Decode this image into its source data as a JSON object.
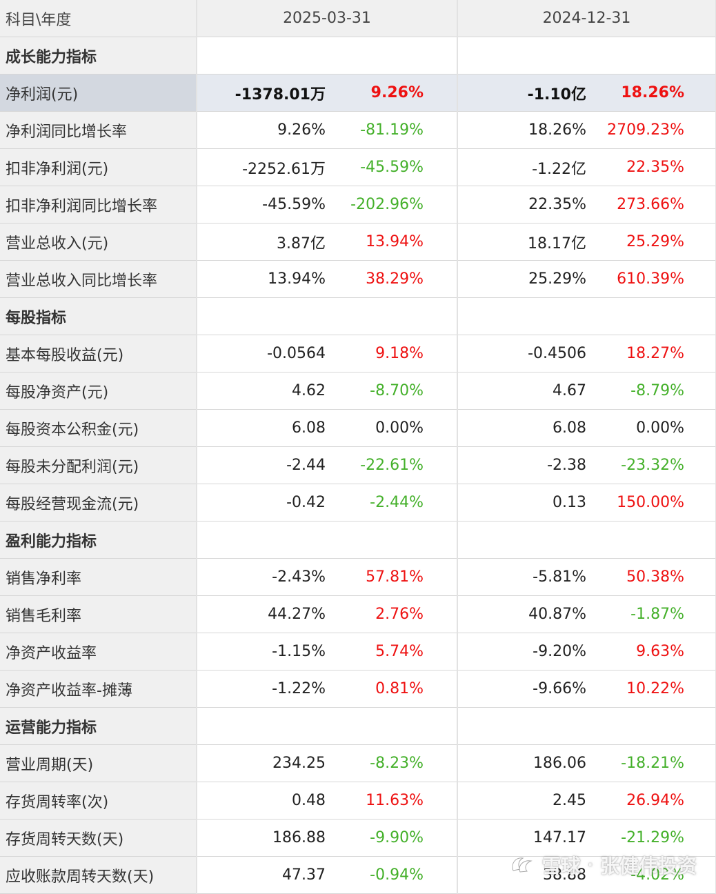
{
  "header": {
    "label": "科目\\年度",
    "periods": [
      "2025-03-31",
      "2024-12-31"
    ]
  },
  "colors": {
    "up": "#ee1111",
    "down": "#44b02a",
    "highlight_row": "#e5e9f0"
  },
  "rows": [
    {
      "type": "section",
      "label": "成长能力指标"
    },
    {
      "type": "data",
      "label": "净利润(元)",
      "highlight": true,
      "cells": [
        {
          "value": "-1378.01万",
          "change": "9.26%",
          "dir": "up"
        },
        {
          "value": "-1.10亿",
          "change": "18.26%",
          "dir": "up"
        }
      ]
    },
    {
      "type": "data",
      "label": "净利润同比增长率",
      "cells": [
        {
          "value": "9.26%",
          "change": "-81.19%",
          "dir": "down"
        },
        {
          "value": "18.26%",
          "change": "2709.23%",
          "dir": "up"
        }
      ]
    },
    {
      "type": "data",
      "label": "扣非净利润(元)",
      "cells": [
        {
          "value": "-2252.61万",
          "change": "-45.59%",
          "dir": "down"
        },
        {
          "value": "-1.22亿",
          "change": "22.35%",
          "dir": "up"
        }
      ]
    },
    {
      "type": "data",
      "label": "扣非净利润同比增长率",
      "cells": [
        {
          "value": "-45.59%",
          "change": "-202.96%",
          "dir": "down"
        },
        {
          "value": "22.35%",
          "change": "273.66%",
          "dir": "up"
        }
      ]
    },
    {
      "type": "data",
      "label": "营业总收入(元)",
      "cells": [
        {
          "value": "3.87亿",
          "change": "13.94%",
          "dir": "up"
        },
        {
          "value": "18.17亿",
          "change": "25.29%",
          "dir": "up"
        }
      ]
    },
    {
      "type": "data",
      "label": "营业总收入同比增长率",
      "cells": [
        {
          "value": "13.94%",
          "change": "38.29%",
          "dir": "up"
        },
        {
          "value": "25.29%",
          "change": "610.39%",
          "dir": "up"
        }
      ]
    },
    {
      "type": "section",
      "label": "每股指标"
    },
    {
      "type": "data",
      "label": "基本每股收益(元)",
      "cells": [
        {
          "value": "-0.0564",
          "change": "9.18%",
          "dir": "up"
        },
        {
          "value": "-0.4506",
          "change": "18.27%",
          "dir": "up"
        }
      ]
    },
    {
      "type": "data",
      "label": "每股净资产(元)",
      "cells": [
        {
          "value": "4.62",
          "change": "-8.70%",
          "dir": "down"
        },
        {
          "value": "4.67",
          "change": "-8.79%",
          "dir": "down"
        }
      ]
    },
    {
      "type": "data",
      "label": "每股资本公积金(元)",
      "cells": [
        {
          "value": "6.08",
          "change": "0.00%",
          "dir": "neutral"
        },
        {
          "value": "6.08",
          "change": "0.00%",
          "dir": "neutral"
        }
      ]
    },
    {
      "type": "data",
      "label": "每股未分配利润(元)",
      "cells": [
        {
          "value": "-2.44",
          "change": "-22.61%",
          "dir": "down"
        },
        {
          "value": "-2.38",
          "change": "-23.32%",
          "dir": "down"
        }
      ]
    },
    {
      "type": "data",
      "label": "每股经营现金流(元)",
      "cells": [
        {
          "value": "-0.42",
          "change": "-2.44%",
          "dir": "down"
        },
        {
          "value": "0.13",
          "change": "150.00%",
          "dir": "up"
        }
      ]
    },
    {
      "type": "section",
      "label": "盈利能力指标"
    },
    {
      "type": "data",
      "label": "销售净利率",
      "cells": [
        {
          "value": "-2.43%",
          "change": "57.81%",
          "dir": "up"
        },
        {
          "value": "-5.81%",
          "change": "50.38%",
          "dir": "up"
        }
      ]
    },
    {
      "type": "data",
      "label": "销售毛利率",
      "cells": [
        {
          "value": "44.27%",
          "change": "2.76%",
          "dir": "up"
        },
        {
          "value": "40.87%",
          "change": "-1.87%",
          "dir": "down"
        }
      ]
    },
    {
      "type": "data",
      "label": "净资产收益率",
      "cells": [
        {
          "value": "-1.15%",
          "change": "5.74%",
          "dir": "up"
        },
        {
          "value": "-9.20%",
          "change": "9.63%",
          "dir": "up"
        }
      ]
    },
    {
      "type": "data",
      "label": "净资产收益率-摊薄",
      "cells": [
        {
          "value": "-1.22%",
          "change": "0.81%",
          "dir": "up"
        },
        {
          "value": "-9.66%",
          "change": "10.22%",
          "dir": "up"
        }
      ]
    },
    {
      "type": "section",
      "label": "运营能力指标"
    },
    {
      "type": "data",
      "label": "营业周期(天)",
      "cells": [
        {
          "value": "234.25",
          "change": "-8.23%",
          "dir": "down"
        },
        {
          "value": "186.06",
          "change": "-18.21%",
          "dir": "down"
        }
      ]
    },
    {
      "type": "data",
      "label": "存货周转率(次)",
      "cells": [
        {
          "value": "0.48",
          "change": "11.63%",
          "dir": "up"
        },
        {
          "value": "2.45",
          "change": "26.94%",
          "dir": "up"
        }
      ]
    },
    {
      "type": "data",
      "label": "存货周转天数(天)",
      "cells": [
        {
          "value": "186.88",
          "change": "-9.90%",
          "dir": "down"
        },
        {
          "value": "147.17",
          "change": "-21.29%",
          "dir": "down"
        }
      ]
    },
    {
      "type": "data",
      "label": "应收账款周转天数(天)",
      "cells": [
        {
          "value": "47.37",
          "change": "-0.94%",
          "dir": "down"
        },
        {
          "value": "38.88",
          "change": "-4.02%",
          "dir": "down"
        }
      ]
    }
  ],
  "watermark": {
    "logo_icon": "snowball-logo-icon",
    "site": "雪球",
    "separator": "·",
    "author": "张健伟投资"
  }
}
